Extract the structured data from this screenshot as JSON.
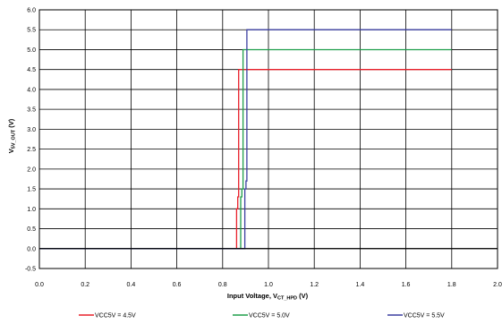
{
  "chart_data": {
    "type": "line",
    "xlabel": {
      "main": "Input Voltage,  V",
      "sub": "CT_HPD",
      "unit": " (V)"
    },
    "ylabel": {
      "main": "V",
      "sub": "5V_OUT",
      "unit": " (V)"
    },
    "xlim": [
      0,
      2.0
    ],
    "ylim": [
      -0.5,
      6.0
    ],
    "x_ticks": [
      "0.0",
      "0.2",
      "0.4",
      "0.6",
      "0.8",
      "1.0",
      "1.2",
      "1.4",
      "1.6",
      "1.8",
      "2.0"
    ],
    "y_ticks": [
      "-0.5",
      "0.0",
      "0.5",
      "1.0",
      "1.5",
      "2.0",
      "2.5",
      "3.0",
      "3.5",
      "4.0",
      "4.5",
      "5.0",
      "5.5",
      "6.0"
    ],
    "grid": true,
    "legend_position": "bottom",
    "series": [
      {
        "name": "VCC5V = 4.5V",
        "color": "#e8202a",
        "x": [
          0.0,
          0.861,
          0.861,
          0.866,
          0.866,
          0.87,
          0.87,
          1.8
        ],
        "y": [
          0.0,
          0.0,
          1.0,
          1.0,
          1.3,
          1.3,
          4.5,
          4.5
        ]
      },
      {
        "name": "VCC5V = 5.0V",
        "color": "#1e9e4a",
        "x": [
          0.0,
          0.879,
          0.879,
          0.884,
          0.884,
          0.889,
          0.889,
          1.8
        ],
        "y": [
          0.0,
          0.0,
          1.3,
          1.3,
          1.5,
          1.5,
          5.0,
          5.0
        ]
      },
      {
        "name": "VCC5V = 5.5V",
        "color": "#3b3fa0",
        "x": [
          0.0,
          0.897,
          0.897,
          0.902,
          0.902,
          0.906,
          0.906,
          1.8
        ],
        "y": [
          0.0,
          0.0,
          1.5,
          1.5,
          1.7,
          1.7,
          5.5,
          5.5
        ]
      }
    ]
  }
}
